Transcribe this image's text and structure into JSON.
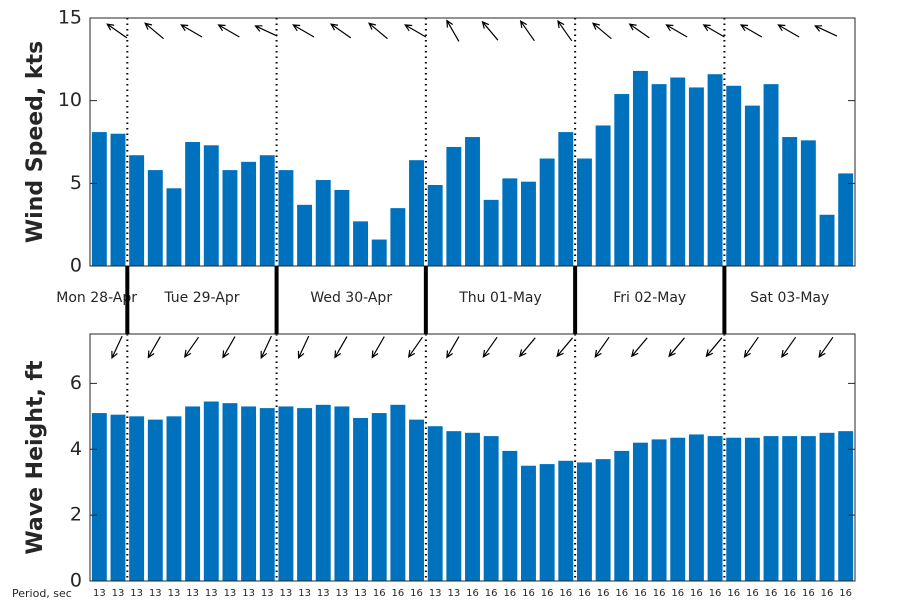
{
  "chart_data": [
    {
      "type": "bar",
      "ylabel": "Wind Speed, kts",
      "color": "#0072bd",
      "ylim": [
        0,
        15
      ],
      "yticks": [
        0,
        5,
        10,
        15
      ],
      "values": [
        8.1,
        8.0,
        6.7,
        5.8,
        4.7,
        7.5,
        7.3,
        5.8,
        6.3,
        6.7,
        5.8,
        3.7,
        5.2,
        4.6,
        2.7,
        1.6,
        3.5,
        6.4,
        4.9,
        7.2,
        7.8,
        4.0,
        5.3,
        5.1,
        6.5,
        8.1,
        6.5,
        8.5,
        10.4,
        11.8,
        11.0,
        11.4,
        10.8,
        11.6,
        10.9,
        9.7,
        11.0,
        7.8,
        7.6,
        3.1,
        5.6
      ],
      "directions": [
        305,
        310,
        300,
        300,
        295,
        300,
        305,
        310,
        300,
        330,
        320,
        325,
        325,
        310,
        305,
        300,
        300,
        300,
        300,
        295
      ]
    },
    {
      "type": "bar",
      "ylabel": "Wave Height, ft",
      "color": "#0072bd",
      "ylim": [
        0,
        7.5
      ],
      "yticks": [
        0,
        2,
        4,
        6
      ],
      "values": [
        5.1,
        5.05,
        5.0,
        4.9,
        5.0,
        5.3,
        5.45,
        5.4,
        5.3,
        5.25,
        5.3,
        5.25,
        5.35,
        5.3,
        4.95,
        5.1,
        5.35,
        4.9,
        4.7,
        4.55,
        4.5,
        4.4,
        3.95,
        3.5,
        3.55,
        3.65,
        3.6,
        3.7,
        3.95,
        4.2,
        4.3,
        4.35,
        4.45,
        4.4,
        4.35,
        4.35,
        4.4,
        4.4,
        4.4,
        4.5,
        4.55
      ],
      "directions": [
        205,
        210,
        215,
        210,
        205,
        205,
        210,
        210,
        215,
        210,
        215,
        220,
        220,
        215,
        220,
        220,
        220,
        215,
        215,
        215
      ]
    }
  ],
  "days": [
    {
      "label": "Mon 28-Apr",
      "bars": 2
    },
    {
      "label": "Tue 29-Apr",
      "bars": 8
    },
    {
      "label": "Wed 30-Apr",
      "bars": 8
    },
    {
      "label": "Thu 01-May",
      "bars": 8
    },
    {
      "label": "Fri 02-May",
      "bars": 8
    },
    {
      "label": "Sat 03-May",
      "bars": 7
    }
  ],
  "period": {
    "label": "Period, sec",
    "values": [
      13,
      13,
      13,
      13,
      13,
      13,
      13,
      13,
      13,
      13,
      13,
      13,
      13,
      13,
      13,
      16,
      16,
      16,
      13,
      13,
      16,
      16,
      16,
      16,
      16,
      16,
      16,
      16,
      16,
      16,
      16,
      16,
      16,
      16,
      16,
      16,
      16,
      16,
      16,
      16,
      16
    ]
  }
}
